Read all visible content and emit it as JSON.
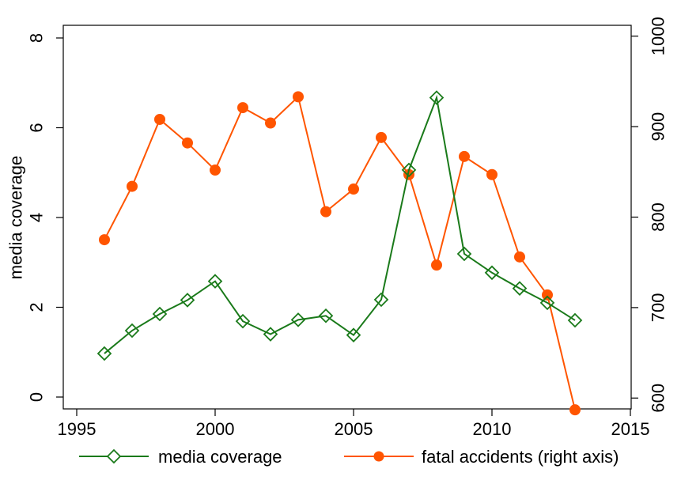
{
  "chart_data": {
    "type": "line",
    "title": "",
    "xlabel": "",
    "ylabel": "media coverage",
    "ylabel_right": "",
    "xlim": [
      1995,
      2015
    ],
    "ylim": [
      0,
      8
    ],
    "ylim_right": [
      588,
      1012
    ],
    "x_ticks": [
      1995,
      2000,
      2005,
      2010,
      2015
    ],
    "y_ticks": [
      0,
      2,
      4,
      6,
      8
    ],
    "y_ticks_right": [
      600,
      700,
      800,
      900,
      1000
    ],
    "grid": false,
    "legend_position": "bottom",
    "x": [
      1996,
      1997,
      1998,
      1999,
      2000,
      2001,
      2002,
      2003,
      2004,
      2005,
      2006,
      2007,
      2008,
      2009,
      2010,
      2011,
      2012,
      2013
    ],
    "series": [
      {
        "name": "media coverage",
        "axis": "left",
        "color": "#1a7a1a",
        "marker": "diamond-hollow",
        "values": [
          0.97,
          1.48,
          1.85,
          2.16,
          2.58,
          1.69,
          1.4,
          1.72,
          1.81,
          1.38,
          2.17,
          5.06,
          6.67,
          3.19,
          2.77,
          2.42,
          2.1,
          1.71
        ]
      },
      {
        "name": "fatal accidents (right axis)",
        "axis": "right",
        "color": "#ff5500",
        "marker": "circle-filled",
        "values": [
          775,
          834,
          908,
          882,
          852,
          921,
          904,
          933,
          806,
          831,
          888,
          847,
          747,
          867,
          847,
          756,
          714,
          587
        ]
      }
    ]
  }
}
